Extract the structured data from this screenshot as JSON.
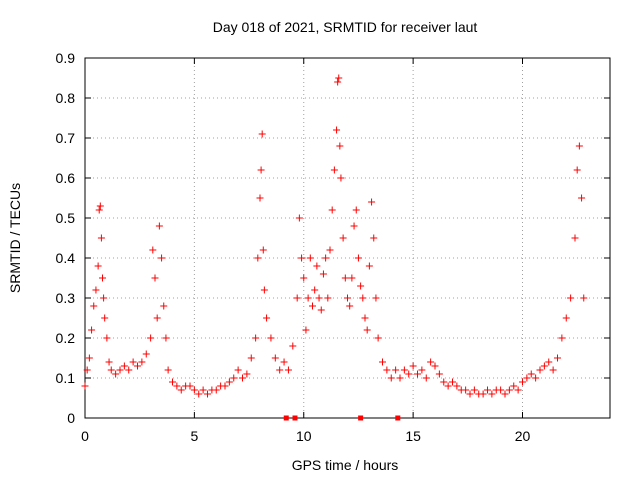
{
  "chart_data": {
    "type": "scatter",
    "title": "Day 018 of 2021, SRMTID for receiver laut",
    "xlabel": "GPS time / hours",
    "ylabel": "SRMTID / TECUs",
    "xlim": [
      0,
      24
    ],
    "ylim": [
      0,
      0.9
    ],
    "grid": true,
    "x_ticks": [
      0,
      5,
      10,
      15,
      20
    ],
    "x_tick_labels": [
      "0",
      "5",
      "10",
      "15",
      "20"
    ],
    "y_ticks": [
      0,
      0.1,
      0.2,
      0.3,
      0.4,
      0.5,
      0.6,
      0.7,
      0.8,
      0.9
    ],
    "y_tick_labels": [
      "0",
      "0.1",
      "0.2",
      "0.3",
      "0.4",
      "0.5",
      "0.6",
      "0.7",
      "0.8",
      "0.9"
    ],
    "marker": "plus",
    "color": "#ff0000",
    "series": [
      {
        "name": "SRMTID",
        "x": [
          0.0,
          0.1,
          0.2,
          0.3,
          0.4,
          0.5,
          0.6,
          0.65,
          0.7,
          0.75,
          0.8,
          0.85,
          0.9,
          1.0,
          1.1,
          1.2,
          1.4,
          1.6,
          1.8,
          2.0,
          2.2,
          2.4,
          2.6,
          2.8,
          3.0,
          3.1,
          3.2,
          3.3,
          3.4,
          3.5,
          3.6,
          3.7,
          3.8,
          4.0,
          4.2,
          4.4,
          4.6,
          4.8,
          5.0,
          5.2,
          5.4,
          5.6,
          5.8,
          6.0,
          6.2,
          6.4,
          6.6,
          6.8,
          7.0,
          7.2,
          7.4,
          7.6,
          7.8,
          7.9,
          8.0,
          8.05,
          8.1,
          8.15,
          8.2,
          8.3,
          8.5,
          8.7,
          8.9,
          9.1,
          9.3,
          9.5,
          9.7,
          9.8,
          9.9,
          10.0,
          10.1,
          10.2,
          10.3,
          10.4,
          10.5,
          10.6,
          10.7,
          10.8,
          10.9,
          11.0,
          11.1,
          11.2,
          11.3,
          11.4,
          11.5,
          11.55,
          11.6,
          11.65,
          11.7,
          11.8,
          11.9,
          12.0,
          12.1,
          12.2,
          12.3,
          12.4,
          12.5,
          12.6,
          12.7,
          12.8,
          12.9,
          13.0,
          13.1,
          13.2,
          13.3,
          13.4,
          13.6,
          13.8,
          14.0,
          14.2,
          14.4,
          14.6,
          14.8,
          15.0,
          15.2,
          15.4,
          15.6,
          15.8,
          16.0,
          16.2,
          16.4,
          16.6,
          16.8,
          17.0,
          17.2,
          17.4,
          17.6,
          17.8,
          18.0,
          18.2,
          18.4,
          18.6,
          18.8,
          19.0,
          19.2,
          19.4,
          19.6,
          19.8,
          20.0,
          20.2,
          20.4,
          20.6,
          20.8,
          21.0,
          21.2,
          21.4,
          21.6,
          21.8,
          22.0,
          22.2,
          22.4,
          22.5,
          22.6,
          22.7,
          22.8
        ],
        "y": [
          0.08,
          0.12,
          0.15,
          0.22,
          0.28,
          0.32,
          0.38,
          0.52,
          0.53,
          0.45,
          0.35,
          0.3,
          0.25,
          0.2,
          0.14,
          0.12,
          0.11,
          0.12,
          0.13,
          0.12,
          0.14,
          0.13,
          0.14,
          0.16,
          0.2,
          0.42,
          0.35,
          0.25,
          0.48,
          0.4,
          0.28,
          0.2,
          0.12,
          0.09,
          0.08,
          0.07,
          0.08,
          0.08,
          0.07,
          0.06,
          0.07,
          0.06,
          0.07,
          0.07,
          0.08,
          0.08,
          0.09,
          0.1,
          0.12,
          0.1,
          0.11,
          0.15,
          0.2,
          0.4,
          0.55,
          0.62,
          0.71,
          0.42,
          0.32,
          0.25,
          0.2,
          0.15,
          0.12,
          0.14,
          0.12,
          0.18,
          0.3,
          0.5,
          0.4,
          0.35,
          0.22,
          0.3,
          0.4,
          0.28,
          0.32,
          0.38,
          0.3,
          0.27,
          0.36,
          0.4,
          0.3,
          0.42,
          0.52,
          0.62,
          0.72,
          0.84,
          0.85,
          0.68,
          0.6,
          0.45,
          0.35,
          0.3,
          0.28,
          0.35,
          0.48,
          0.52,
          0.4,
          0.33,
          0.3,
          0.25,
          0.22,
          0.38,
          0.54,
          0.45,
          0.3,
          0.2,
          0.14,
          0.12,
          0.1,
          0.12,
          0.1,
          0.12,
          0.11,
          0.13,
          0.11,
          0.12,
          0.1,
          0.14,
          0.13,
          0.11,
          0.09,
          0.08,
          0.09,
          0.08,
          0.07,
          0.07,
          0.06,
          0.07,
          0.06,
          0.06,
          0.07,
          0.06,
          0.07,
          0.07,
          0.06,
          0.07,
          0.08,
          0.07,
          0.09,
          0.1,
          0.11,
          0.1,
          0.12,
          0.13,
          0.14,
          0.12,
          0.15,
          0.2,
          0.25,
          0.3,
          0.45,
          0.62,
          0.68,
          0.55,
          0.3
        ]
      }
    ],
    "x_axis_markers": [
      9.2,
      9.6,
      12.6,
      14.3
    ]
  }
}
